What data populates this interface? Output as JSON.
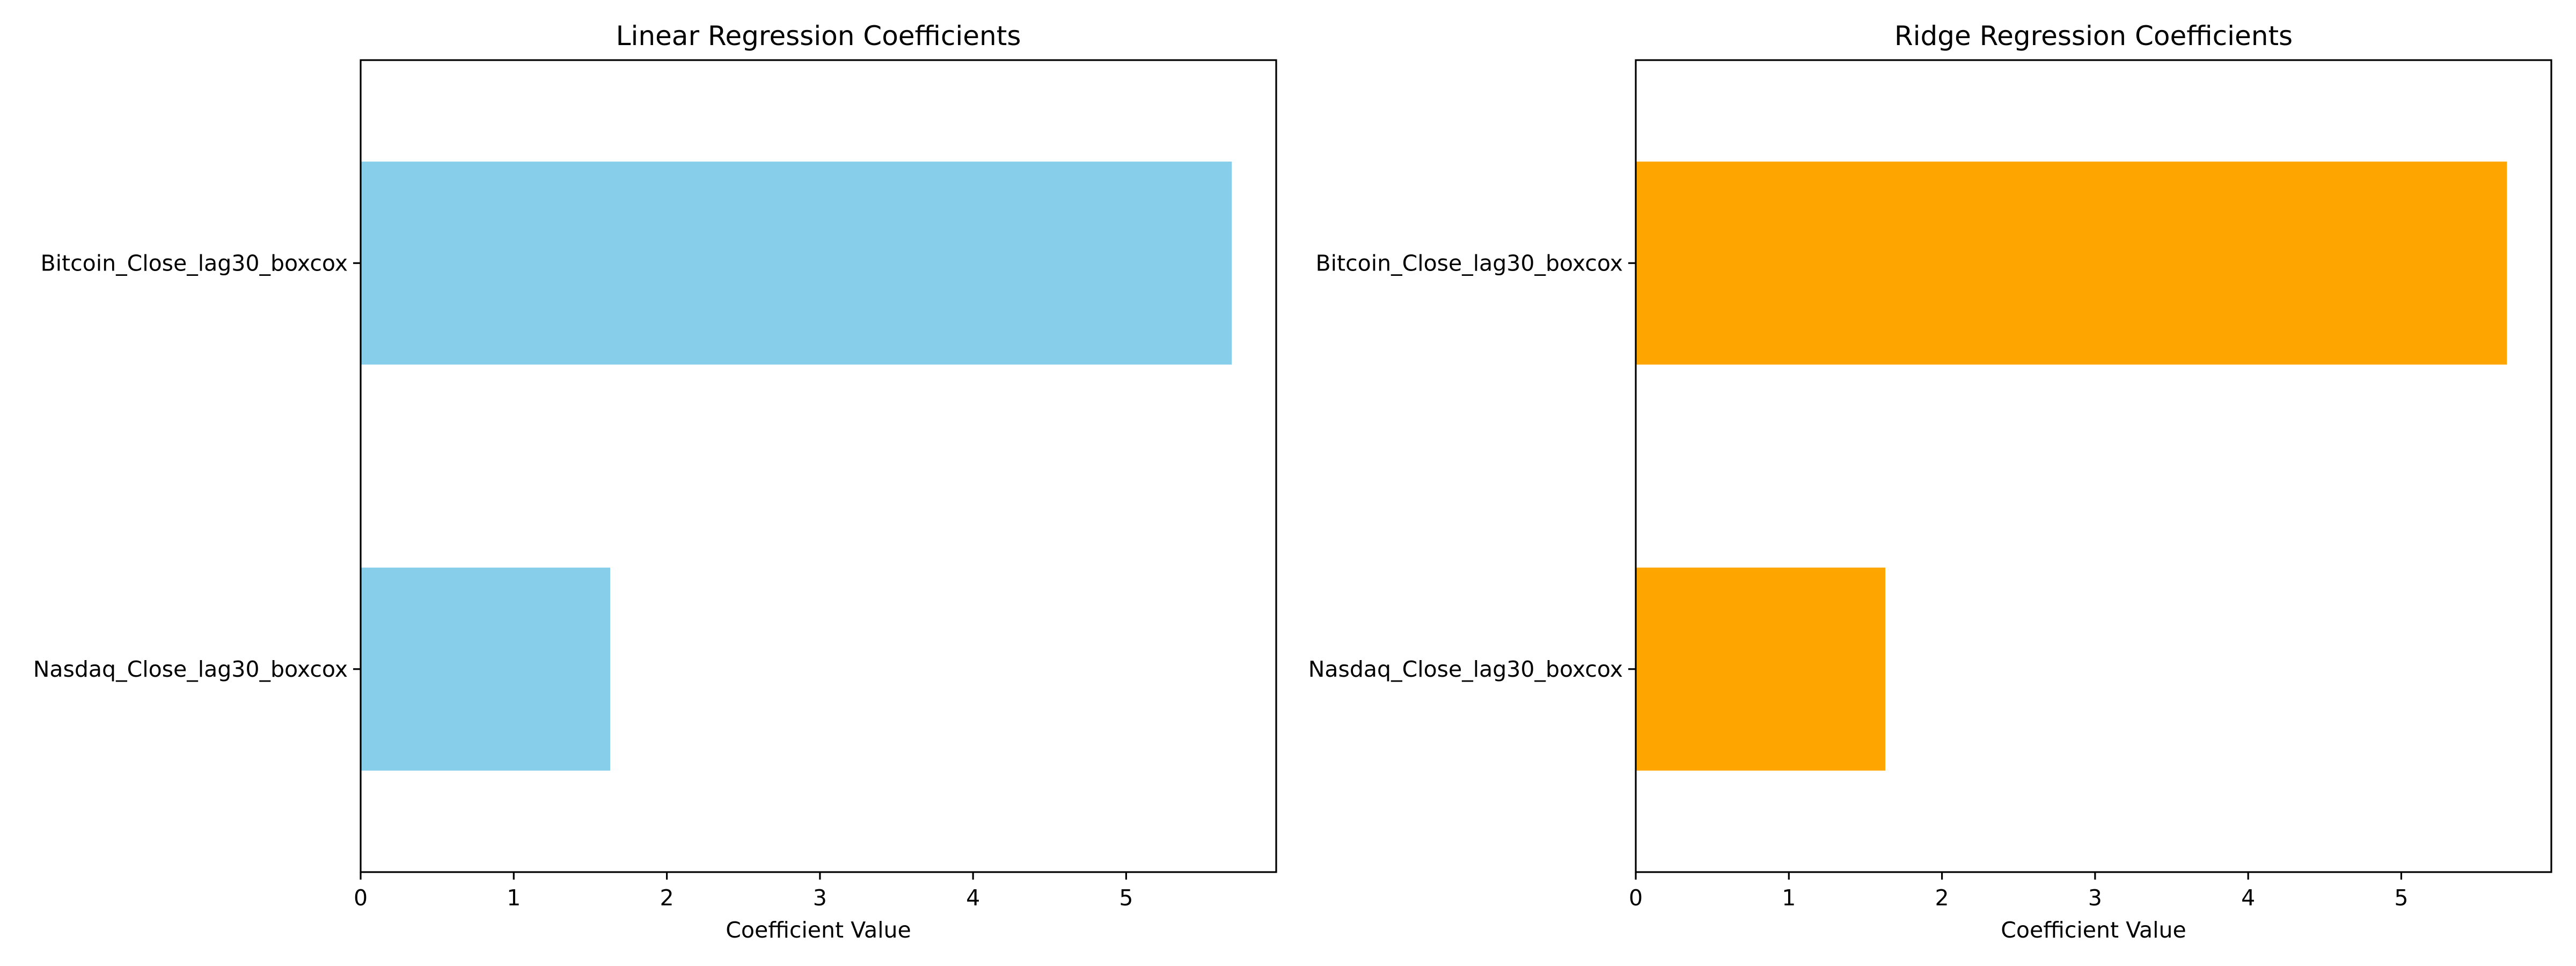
{
  "chart_data": [
    {
      "type": "bar",
      "orientation": "horizontal",
      "title": "Linear Regression Coefficients",
      "xlabel": "Coefficient Value",
      "ylabel": "",
      "categories": [
        "Bitcoin_Close_lag30_boxcox",
        "Nasdaq_Close_lag30_boxcox"
      ],
      "values": [
        5.69,
        1.63
      ],
      "xlim": [
        0,
        5.98
      ],
      "xticks": [
        0,
        1,
        2,
        3,
        4,
        5
      ],
      "grid": false,
      "legend": "none",
      "color": "#87CEEB"
    },
    {
      "type": "bar",
      "orientation": "horizontal",
      "title": "Ridge Regression Coefficients",
      "xlabel": "Coefficient Value",
      "ylabel": "",
      "categories": [
        "Bitcoin_Close_lag30_boxcox",
        "Nasdaq_Close_lag30_boxcox"
      ],
      "values": [
        5.69,
        1.63
      ],
      "xlim": [
        0,
        5.98
      ],
      "xticks": [
        0,
        1,
        2,
        3,
        4,
        5
      ],
      "grid": false,
      "legend": "none",
      "color": "#FFA500"
    }
  ]
}
